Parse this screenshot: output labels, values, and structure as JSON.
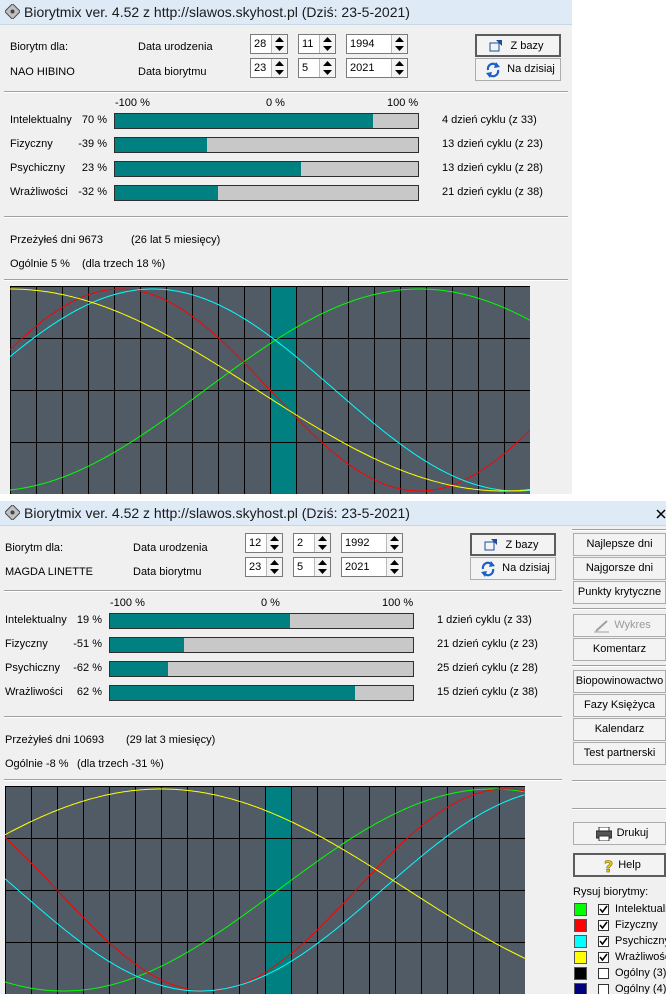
{
  "window_top": {
    "title": "Biorytmix ver. 4.52 z http://slawos.skyhost.pl (Dziś: 23-5-2021)",
    "label_biorytm_dla": "Biorytm dla:",
    "person_name": "NAO HIBINO",
    "label_data_urodzenia": "Data urodzenia",
    "label_data_biorytmu": "Data biorytmu",
    "birth_day": "28",
    "birth_month": "11",
    "birth_year": "1994",
    "bio_day": "23",
    "bio_month": "5",
    "bio_year": "2021",
    "btn_z_bazy": "Z bazy",
    "btn_na_dzisiaj": "Na dzisiaj",
    "scale_min": "-100 %",
    "scale_mid": "0 %",
    "scale_max": "100 %",
    "rows": [
      {
        "name": "Intelektualny",
        "pct_text": "70 %",
        "value": 70,
        "cycle": "4 dzień cyklu (z 33)"
      },
      {
        "name": "Fizyczny",
        "pct_text": "-39 %",
        "value": -39,
        "cycle": "13 dzień cyklu (z 23)"
      },
      {
        "name": "Psychiczny",
        "pct_text": "23 %",
        "value": 23,
        "cycle": "13 dzień cyklu (z 28)"
      },
      {
        "name": "Wrażliwości",
        "pct_text": "-32 %",
        "value": -32,
        "cycle": "21 dzień cyklu (z 38)"
      }
    ],
    "przezyles": "Przeżyłeś dni 9673",
    "lat": "(26 lat 5 miesięcy)",
    "ogolnie": "Ogólnie 5 %",
    "dla_trzech": "(dla trzech 18 %)"
  },
  "window_bottom": {
    "title": "Biorytmix ver. 4.52 z http://slawos.skyhost.pl (Dziś: 23-5-2021)",
    "label_biorytm_dla": "Biorytm dla:",
    "person_name": "MAGDA LINETTE",
    "label_data_urodzenia": "Data urodzenia",
    "label_data_biorytmu": "Data biorytmu",
    "birth_day": "12",
    "birth_month": "2",
    "birth_year": "1992",
    "bio_day": "23",
    "bio_month": "5",
    "bio_year": "2021",
    "btn_z_bazy": "Z bazy",
    "btn_na_dzisiaj": "Na dzisiaj",
    "scale_min": "-100 %",
    "scale_mid": "0 %",
    "scale_max": "100 %",
    "rows": [
      {
        "name": "Intelektualny",
        "pct_text": "19 %",
        "value": 19,
        "cycle": "1 dzień cyklu (z 33)"
      },
      {
        "name": "Fizyczny",
        "pct_text": "-51 %",
        "value": -51,
        "cycle": "21 dzień cyklu (z 23)"
      },
      {
        "name": "Psychiczny",
        "pct_text": "-62 %",
        "value": -62,
        "cycle": "25 dzień cyklu (z 28)"
      },
      {
        "name": "Wrażliwości",
        "pct_text": "62 %",
        "value": 62,
        "cycle": "15 dzień cyklu (z 38)"
      }
    ],
    "przezyles": "Przeżyłeś dni 10693",
    "lat": "(29 lat 3 miesięcy)",
    "ogolnie": "Ogólnie -8 %",
    "dla_trzech": "(dla trzech -31 %)",
    "side_buttons": {
      "najlepsze": "Najlepsze dni",
      "najgorsze": "Najgorsze dni",
      "punkty": "Punkty krytyczne",
      "wykres": "Wykres",
      "komentarz": "Komentarz",
      "biopowinowactwo": "Biopowinowactwo",
      "fazy": "Fazy Księżyca",
      "kalendarz": "Kalendarz",
      "test": "Test partnerski",
      "drukuj": "Drukuj",
      "help": "Help"
    },
    "legend_title": "Rysuj biorytmy:",
    "legend": [
      {
        "color": "#00ff00",
        "label": "Intelektualny",
        "checked": true
      },
      {
        "color": "#ff0000",
        "label": "Fizyczny",
        "checked": true
      },
      {
        "color": "#00ffff",
        "label": "Psychiczny",
        "checked": true
      },
      {
        "color": "#ffff00",
        "label": "Wrażliwości",
        "checked": true
      },
      {
        "color": "#000000",
        "label": "Ogólny (3)",
        "checked": false
      },
      {
        "color": "#000080",
        "label": "Ogólny (4)",
        "checked": false
      }
    ]
  },
  "colors": {
    "intelektualny": "#00ff00",
    "fizyczny": "#ff0000",
    "psychiczny": "#00ffff",
    "wrazliwosci": "#ffff00",
    "bar_fill": "#008080",
    "chart_bg": "#505b66",
    "today_column": "#008080"
  }
}
